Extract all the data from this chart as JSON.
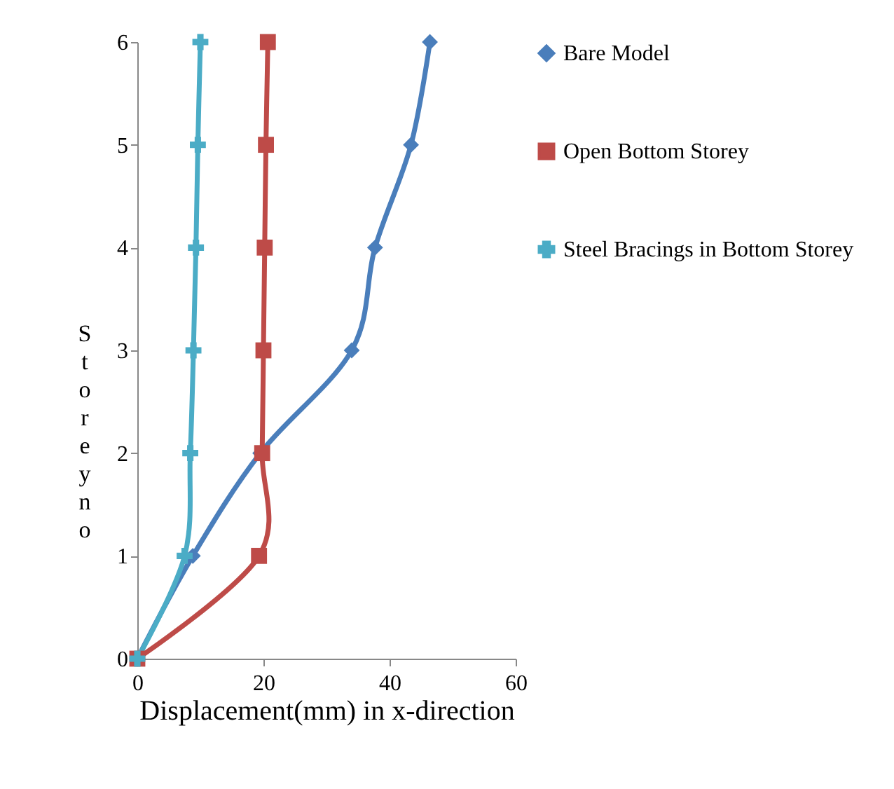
{
  "chart_data": {
    "type": "line",
    "xlabel": "Displacement(mm) in x-direction",
    "ylabel": "Storey no",
    "series": [
      {
        "name": "Bare Model",
        "color": "#4a7ebb",
        "marker": "diamond",
        "x": [
          0,
          8.8,
          19.5,
          34,
          37.7,
          43.4,
          46.4
        ],
        "values": [
          0,
          1,
          2,
          3,
          4,
          5,
          6
        ]
      },
      {
        "name": "Open Bottom Storey",
        "color": "#be4b48",
        "marker": "square",
        "x": [
          0,
          19.3,
          19.8,
          20,
          20.2,
          20.4,
          20.7
        ],
        "values": [
          0,
          1,
          2,
          3,
          4,
          5,
          6
        ]
      },
      {
        "name": "Steel Bracings in Bottom Storey",
        "color": "#4bacc6",
        "marker": "cross",
        "x": [
          0,
          7.5,
          8.4,
          8.9,
          9.3,
          9.6,
          10
        ],
        "values": [
          0,
          1,
          2,
          3,
          4,
          5,
          6
        ]
      }
    ],
    "xlim": [
      0,
      60
    ],
    "xticks": [
      0,
      20,
      40,
      60
    ],
    "ylim": [
      0,
      6
    ],
    "yticks": [
      0,
      1,
      2,
      3,
      4,
      5,
      6
    ],
    "grid": false,
    "legend": "right",
    "line_style": "solid"
  }
}
